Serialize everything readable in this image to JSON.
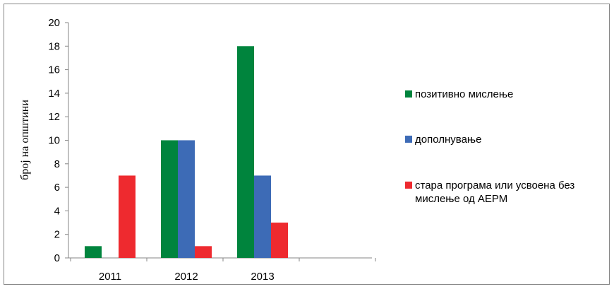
{
  "chart_data": {
    "type": "bar",
    "title": "",
    "xlabel": "",
    "ylabel": "број на општини",
    "categories": [
      "2011",
      "2012",
      "2013"
    ],
    "ylim": [
      0,
      20
    ],
    "yticks": [
      0,
      2,
      4,
      6,
      8,
      10,
      12,
      14,
      16,
      18,
      20
    ],
    "grid": false,
    "legend_position": "right",
    "series": [
      {
        "name": "позитивно мислење",
        "color": "#00843d",
        "values": [
          1,
          10,
          18
        ]
      },
      {
        "name": "дополнување",
        "color": "#3d6bb6",
        "values": [
          0,
          10,
          7
        ]
      },
      {
        "name": "стара програма или усвоена без мислење од АЕРМ",
        "color": "#ee2a2f",
        "values": [
          7,
          1,
          3
        ]
      }
    ]
  }
}
